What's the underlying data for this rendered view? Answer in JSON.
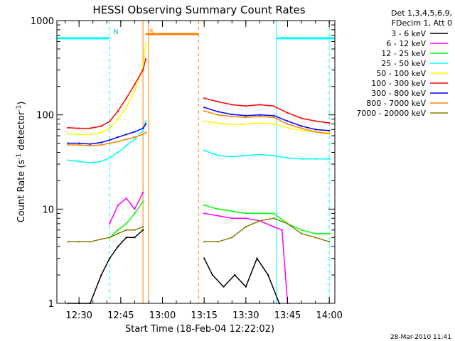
{
  "chart_data": {
    "type": "line",
    "title": "HESSI Observing Summary Count Rates",
    "xlabel": "Start Time (18-Feb-04 12:22:02)",
    "ylabel": "Count Rate (s⁻¹ detector⁻¹)",
    "ylabel_parts": [
      "Count Rate (s",
      "-1",
      " detector",
      "-1",
      ")"
    ],
    "yscale": "log",
    "ylim": [
      1,
      1000
    ],
    "xlim": [
      "12:22:02",
      "14:02:00"
    ],
    "x_ticks": [
      "12:30",
      "12:45",
      "13:00",
      "13:15",
      "13:30",
      "13:45",
      "14:00"
    ],
    "y_ticks": [
      "1",
      "10",
      "100",
      "1000"
    ],
    "legend_header": [
      "Det 1,3,4,5,6,9,",
      "FDecim 1, Att 0"
    ],
    "legend_position": "right",
    "timestamp": "28-Mar-2010 11:41",
    "series": [
      {
        "name": "3 - 6 keV",
        "color": "#000000",
        "x": [
          "12:26",
          "12:30",
          "12:34",
          "12:38",
          "12:41",
          "12:44",
          "12:47",
          "12:50",
          "12:53",
          "13:15",
          "13:18",
          "13:22",
          "13:26",
          "13:30",
          "13:34",
          "13:38",
          "13:42"
        ],
        "values": [
          1,
          1,
          1,
          2,
          3,
          4,
          5,
          5,
          6,
          3,
          2,
          1.5,
          2,
          1.5,
          3,
          2,
          1
        ]
      },
      {
        "name": "6 - 12 keV",
        "color": "#ff00ff",
        "x": [
          "12:26",
          "12:41",
          "12:44",
          "12:47",
          "12:50",
          "12:53",
          "13:15",
          "13:20",
          "13:25",
          "13:30",
          "13:35",
          "13:40",
          "13:43",
          "13:45"
        ],
        "values": [
          1,
          7,
          11,
          13,
          10,
          15,
          9,
          8.5,
          8,
          8,
          7.5,
          6.5,
          6,
          1
        ]
      },
      {
        "name": "12 - 25 keV",
        "color": "#00ff00",
        "x": [
          "12:41",
          "12:44",
          "12:47",
          "12:50",
          "12:53",
          "13:15",
          "13:20",
          "13:25",
          "13:30",
          "13:35",
          "13:40",
          "13:45",
          "13:50",
          "13:55",
          "14:00"
        ],
        "values": [
          5,
          6,
          7,
          9,
          12,
          11,
          10,
          9.5,
          9,
          9,
          9,
          7,
          6,
          5.5,
          5.5
        ]
      },
      {
        "name": "25 - 50 keV",
        "color": "#00ffff",
        "x": [
          "12:26",
          "12:30",
          "12:34",
          "12:38",
          "12:41",
          "12:44",
          "12:47",
          "12:50",
          "12:53",
          "12:54",
          "13:15",
          "13:20",
          "13:25",
          "13:30",
          "13:35",
          "13:40",
          "13:45",
          "13:50",
          "13:55",
          "14:00"
        ],
        "values": [
          33,
          32,
          31,
          32,
          35,
          40,
          47,
          55,
          68,
          85,
          42,
          37,
          36,
          37,
          38,
          37,
          35,
          34,
          34,
          34
        ]
      },
      {
        "name": "50 - 100 keV",
        "color": "#ffff00",
        "x": [
          "12:26",
          "12:30",
          "12:34",
          "12:38",
          "12:41",
          "12:44",
          "12:47",
          "12:50",
          "12:53",
          "12:54",
          "13:15",
          "13:20",
          "13:25",
          "13:30",
          "13:35",
          "13:40",
          "13:45",
          "13:50",
          "13:55",
          "14:00"
        ],
        "values": [
          63,
          62,
          62,
          65,
          72,
          90,
          120,
          180,
          320,
          570,
          85,
          82,
          79,
          80,
          82,
          80,
          73,
          68,
          66,
          65
        ]
      },
      {
        "name": "100 - 300 keV",
        "color": "#ff0000",
        "x": [
          "12:26",
          "12:30",
          "12:34",
          "12:38",
          "12:41",
          "12:44",
          "12:47",
          "12:50",
          "12:53",
          "12:54",
          "13:15",
          "13:20",
          "13:25",
          "13:30",
          "13:35",
          "13:40",
          "13:45",
          "13:50",
          "13:55",
          "14:00"
        ],
        "values": [
          73,
          72,
          72,
          76,
          85,
          110,
          150,
          210,
          300,
          390,
          150,
          138,
          128,
          124,
          128,
          124,
          105,
          92,
          86,
          82
        ]
      },
      {
        "name": "300 - 800 keV",
        "color": "#0000ff",
        "x": [
          "12:26",
          "12:30",
          "12:34",
          "12:38",
          "12:41",
          "12:44",
          "12:47",
          "12:50",
          "12:53",
          "12:54",
          "13:15",
          "13:20",
          "13:25",
          "13:30",
          "13:35",
          "13:40",
          "13:45",
          "13:50",
          "13:55",
          "14:00"
        ],
        "values": [
          50,
          50,
          49,
          51,
          54,
          58,
          62,
          66,
          72,
          80,
          120,
          108,
          101,
          98,
          100,
          98,
          86,
          76,
          70,
          68
        ]
      },
      {
        "name": "800 - 7000 keV",
        "color": "#ff8000",
        "x": [
          "12:26",
          "12:30",
          "12:34",
          "12:38",
          "12:41",
          "12:44",
          "12:47",
          "12:50",
          "12:53",
          "12:54",
          "13:15",
          "13:20",
          "13:25",
          "13:30",
          "13:35",
          "13:40",
          "13:45",
          "13:50",
          "13:55",
          "14:00"
        ],
        "values": [
          48,
          48,
          47,
          48,
          50,
          52,
          55,
          58,
          62,
          65,
          110,
          100,
          96,
          94,
          96,
          94,
          80,
          72,
          66,
          63
        ]
      },
      {
        "name": "7000 - 20000 keV",
        "color": "#808000",
        "x": [
          "12:26",
          "12:30",
          "12:34",
          "12:38",
          "12:41",
          "12:44",
          "12:47",
          "12:50",
          "12:53",
          "13:15",
          "13:20",
          "13:25",
          "13:30",
          "13:35",
          "13:40",
          "13:45",
          "13:50",
          "13:55",
          "14:00"
        ],
        "values": [
          4.5,
          4.5,
          4.5,
          4.8,
          5,
          5.5,
          6,
          6,
          6.5,
          4.5,
          4.5,
          5,
          6.5,
          7.5,
          8,
          7,
          5.5,
          5,
          4.5
        ]
      }
    ],
    "annotations": [
      {
        "text": "N",
        "color": "#00cccc",
        "time": "12:41"
      },
      {
        "text": "S",
        "color": "#ff8000",
        "time": "12:54"
      }
    ]
  }
}
